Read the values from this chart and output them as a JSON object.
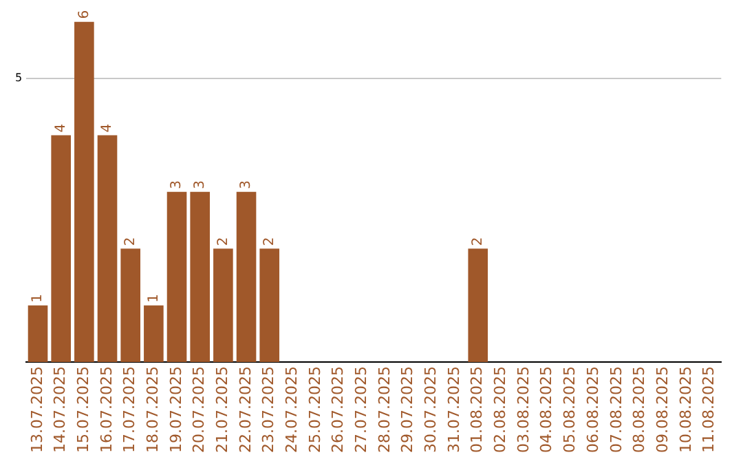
{
  "chart_data": {
    "type": "bar",
    "categories": [
      "13.07.2025",
      "14.07.2025",
      "15.07.2025",
      "16.07.2025",
      "17.07.2025",
      "18.07.2025",
      "19.07.2025",
      "20.07.2025",
      "21.07.2025",
      "22.07.2025",
      "23.07.2025",
      "24.07.2025",
      "25.07.2025",
      "26.07.2025",
      "27.07.2025",
      "28.07.2025",
      "29.07.2025",
      "30.07.2025",
      "31.07.2025",
      "01.08.2025",
      "02.08.2025",
      "03.08.2025",
      "04.08.2025",
      "05.08.2025",
      "06.08.2025",
      "07.08.2025",
      "08.08.2025",
      "09.08.2025",
      "10.08.2025",
      "11.08.2025"
    ],
    "values": [
      1,
      4,
      6,
      4,
      2,
      1,
      3,
      3,
      2,
      3,
      2,
      0,
      0,
      0,
      0,
      0,
      0,
      0,
      0,
      2,
      0,
      0,
      0,
      0,
      0,
      0,
      0,
      0,
      0,
      0
    ],
    "value_labels": [
      "1",
      "4",
      "6",
      "4",
      "2",
      "1",
      "3",
      "3",
      "2",
      "3",
      "2",
      null,
      null,
      null,
      null,
      null,
      null,
      null,
      null,
      "2",
      null,
      null,
      null,
      null,
      null,
      null,
      null,
      null,
      null,
      null
    ],
    "color": "#a0582a",
    "ylim": [
      0,
      6
    ],
    "yticks": [
      5
    ],
    "grid": "y",
    "legend": false
  }
}
